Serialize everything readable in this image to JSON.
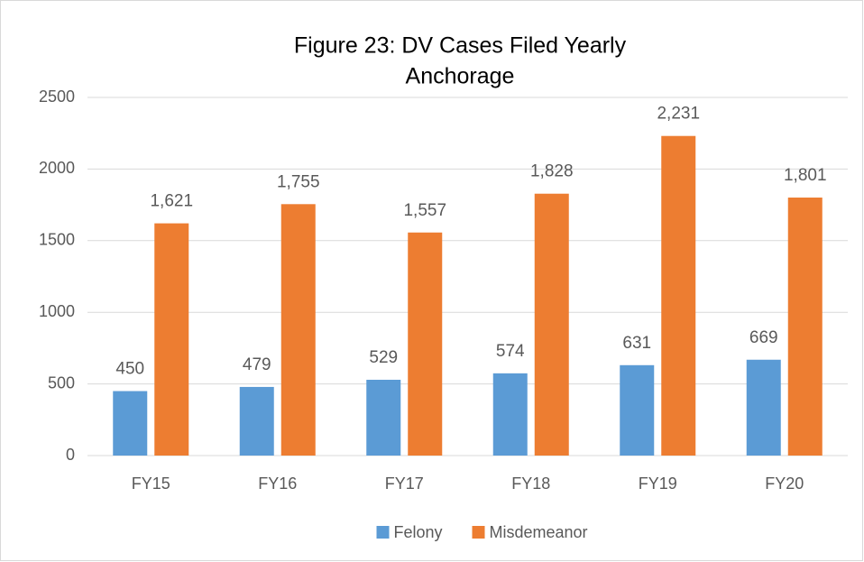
{
  "chart_data": {
    "type": "bar",
    "title": "Figure 23: DV Cases Filed Yearly",
    "subtitle": "Anchorage",
    "categories": [
      "FY15",
      "FY16",
      "FY17",
      "FY18",
      "FY19",
      "FY20"
    ],
    "series": [
      {
        "name": "Felony",
        "color": "#5b9bd5",
        "values": [
          450,
          479,
          529,
          574,
          631,
          669
        ],
        "value_labels": [
          "450",
          "479",
          "529",
          "574",
          "631",
          "669"
        ]
      },
      {
        "name": "Misdemeanor",
        "color": "#ed7d31",
        "values": [
          1621,
          1755,
          1557,
          1828,
          2231,
          1801
        ],
        "value_labels": [
          "1,621",
          "1,755",
          "1,557",
          "1,828",
          "2,231",
          "1,801"
        ]
      }
    ],
    "ylim": [
      0,
      2500
    ],
    "yticks": [
      0,
      500,
      1000,
      1500,
      2000,
      2500
    ],
    "grid": true,
    "legend": "bottom"
  }
}
